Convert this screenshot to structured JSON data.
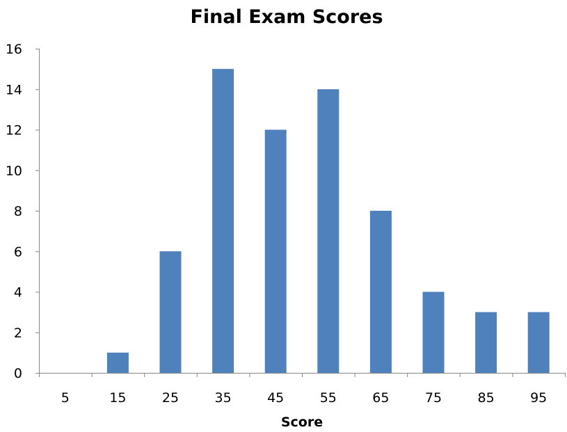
{
  "chart_data": {
    "type": "bar",
    "title": "Final Exam Scores",
    "xlabel": "Score",
    "ylabel": "",
    "categories": [
      "5",
      "15",
      "25",
      "35",
      "45",
      "55",
      "65",
      "75",
      "85",
      "95"
    ],
    "values": [
      0,
      1,
      6,
      15,
      12,
      14,
      8,
      4,
      3,
      3
    ],
    "ylim": [
      0,
      16
    ],
    "yticks": [
      0,
      2,
      4,
      6,
      8,
      10,
      12,
      14,
      16
    ],
    "grid": false,
    "legend": "none",
    "bar_color": "#4F81BD",
    "axis_color": "#868686"
  }
}
